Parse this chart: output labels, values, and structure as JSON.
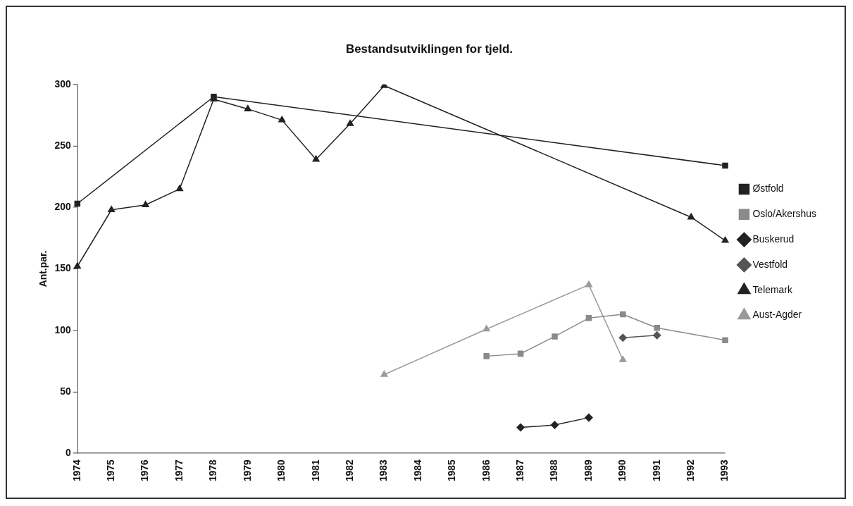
{
  "chart_data": {
    "type": "line",
    "title": "Bestandsutviklingen for tjeld.",
    "ylabel": "Ant.par.",
    "categories": [
      "1974",
      "1975",
      "1976",
      "1977",
      "1978",
      "1979",
      "1980",
      "1981",
      "1982",
      "1983",
      "1984",
      "1985",
      "1986",
      "1987",
      "1988",
      "1989",
      "1990",
      "1991",
      "1992",
      "1993"
    ],
    "ylim": [
      0,
      300
    ],
    "yticks": [
      0,
      50,
      100,
      150,
      200,
      250,
      300
    ],
    "grid": false,
    "legend": "right",
    "line_style": "solid",
    "series": [
      {
        "name": "Østfold",
        "color": "#222222",
        "marker": "square",
        "values": [
          203,
          null,
          null,
          null,
          290,
          null,
          null,
          null,
          null,
          null,
          null,
          null,
          null,
          null,
          null,
          null,
          null,
          null,
          null,
          234
        ]
      },
      {
        "name": "Oslo/Akershus",
        "color": "#8a8a8a",
        "marker": "square",
        "values": [
          null,
          null,
          null,
          null,
          null,
          null,
          null,
          null,
          null,
          null,
          null,
          null,
          79,
          81,
          95,
          110,
          113,
          102,
          null,
          92
        ]
      },
      {
        "name": "Buskerud",
        "color": "#222222",
        "marker": "diamond",
        "values": [
          null,
          null,
          null,
          null,
          null,
          null,
          null,
          null,
          null,
          null,
          null,
          null,
          null,
          21,
          23,
          29,
          null,
          null,
          null,
          null
        ]
      },
      {
        "name": "Vestfold",
        "color": "#555555",
        "marker": "diamond",
        "values": [
          null,
          null,
          null,
          null,
          null,
          null,
          null,
          null,
          null,
          null,
          null,
          null,
          null,
          null,
          null,
          null,
          94,
          96,
          null,
          null
        ]
      },
      {
        "name": "Telemark",
        "color": "#222222",
        "marker": "triangle",
        "values": [
          152,
          198,
          202,
          215,
          288,
          280,
          271,
          239,
          268,
          299,
          null,
          null,
          null,
          null,
          null,
          null,
          null,
          null,
          192,
          173
        ]
      },
      {
        "name": "Aust-Agder",
        "color": "#9a9a9a",
        "marker": "triangle",
        "values": [
          null,
          null,
          null,
          null,
          null,
          null,
          null,
          null,
          null,
          64,
          null,
          null,
          101,
          null,
          null,
          137,
          76,
          null,
          null,
          null
        ]
      }
    ]
  }
}
